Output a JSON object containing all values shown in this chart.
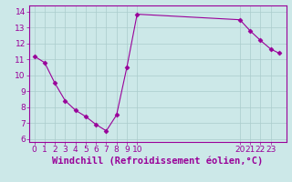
{
  "x": [
    0,
    1,
    2,
    3,
    4,
    5,
    6,
    7,
    8,
    9,
    10,
    20,
    21,
    22,
    23,
    23.8
  ],
  "y": [
    11.2,
    10.8,
    9.5,
    8.4,
    7.8,
    7.4,
    6.9,
    6.5,
    7.5,
    10.5,
    13.85,
    13.5,
    12.8,
    12.2,
    11.65,
    11.4
  ],
  "line_color": "#990099",
  "marker": "D",
  "markersize": 2.5,
  "bg_color": "#cce8e8",
  "grid_color": "#aacccc",
  "xlabel": "Windchill (Refroidissement éolien,°C)",
  "xlabel_color": "#990099",
  "ylim": [
    5.8,
    14.4
  ],
  "xlim": [
    -0.5,
    24.5
  ],
  "yticks": [
    6,
    7,
    8,
    9,
    10,
    11,
    12,
    13,
    14
  ],
  "xticks": [
    0,
    1,
    2,
    3,
    4,
    5,
    6,
    7,
    8,
    9,
    10,
    20,
    21,
    22,
    23
  ],
  "tick_color": "#990099",
  "tick_fontsize": 6.5,
  "xlabel_fontsize": 7.5,
  "spine_color": "#990099"
}
